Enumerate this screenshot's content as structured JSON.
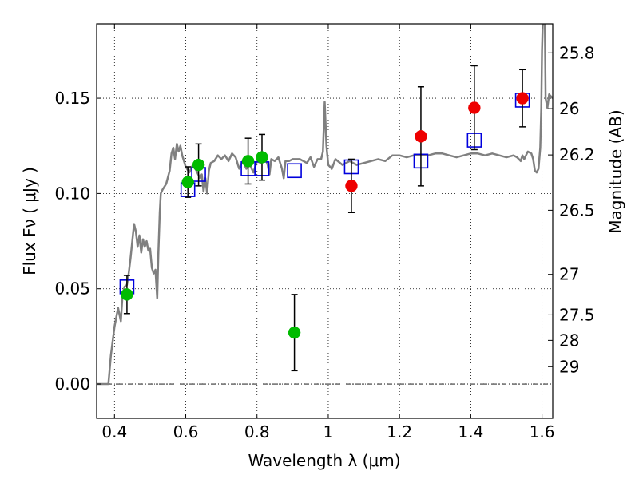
{
  "chart_data": {
    "type": "scatter",
    "title": "",
    "xlabel": "Wavelength  λ (μm)",
    "ylabel": "Flux  Fν  ( μJy )",
    "y2label": "Magnitude (AB)",
    "xlim": [
      0.35,
      1.63
    ],
    "ylim": [
      -0.018,
      0.189
    ],
    "grid": true,
    "x_ticks": [
      0.4,
      0.6,
      0.8,
      1.0,
      1.2,
      1.4,
      1.6
    ],
    "x_tick_labels": [
      "0.4",
      "0.6",
      "0.8",
      "1",
      "1.2",
      "1.4",
      "1.6"
    ],
    "y_ticks": [
      0.0,
      0.05,
      0.1,
      0.15
    ],
    "y_tick_labels": [
      "0.00",
      "0.05",
      "0.10",
      "0.15"
    ],
    "mag_ticks": [
      25.8,
      26,
      26.2,
      26.5,
      27,
      27.5,
      28,
      29
    ],
    "mag_tick_labels": [
      "25.8",
      "26",
      "26.2",
      "26.5",
      "27",
      "27.5",
      "28",
      "29"
    ],
    "colors": {
      "sed_line": "#808080",
      "green_points": "#00bb00",
      "red_points": "#ee0000",
      "model_boxes": "#0000dd",
      "error_bars": "#000000"
    },
    "series": [
      {
        "kind": "observed",
        "color": "green",
        "points": [
          {
            "x": 0.435,
            "y": 0.047,
            "err": 0.01
          },
          {
            "x": 0.606,
            "y": 0.106,
            "err": 0.008
          },
          {
            "x": 0.636,
            "y": 0.115,
            "err": 0.011
          },
          {
            "x": 0.775,
            "y": 0.117,
            "err": 0.012
          },
          {
            "x": 0.814,
            "y": 0.119,
            "err": 0.012
          },
          {
            "x": 0.905,
            "y": 0.027,
            "err": 0.02
          }
        ]
      },
      {
        "kind": "observed",
        "color": "red",
        "points": [
          {
            "x": 1.065,
            "y": 0.104,
            "err": 0.014
          },
          {
            "x": 1.26,
            "y": 0.13,
            "err": 0.026
          },
          {
            "x": 1.41,
            "y": 0.145,
            "err": 0.022
          },
          {
            "x": 1.545,
            "y": 0.15,
            "err": 0.015
          }
        ]
      },
      {
        "kind": "model_band",
        "points": [
          {
            "x": 0.435,
            "y": 0.051
          },
          {
            "x": 0.606,
            "y": 0.102
          },
          {
            "x": 0.636,
            "y": 0.11
          },
          {
            "x": 0.775,
            "y": 0.113
          },
          {
            "x": 0.814,
            "y": 0.113
          },
          {
            "x": 0.905,
            "y": 0.112
          },
          {
            "x": 1.065,
            "y": 0.114
          },
          {
            "x": 1.26,
            "y": 0.117
          },
          {
            "x": 1.41,
            "y": 0.128
          },
          {
            "x": 1.545,
            "y": 0.149
          }
        ]
      },
      {
        "kind": "sed_template",
        "points": [
          [
            0.35,
            0.0
          ],
          [
            0.375,
            0.0
          ],
          [
            0.383,
            0.0
          ],
          [
            0.39,
            0.015
          ],
          [
            0.4,
            0.03
          ],
          [
            0.41,
            0.04
          ],
          [
            0.418,
            0.033
          ],
          [
            0.422,
            0.045
          ],
          [
            0.428,
            0.051
          ],
          [
            0.435,
            0.052
          ],
          [
            0.44,
            0.058
          ],
          [
            0.445,
            0.066
          ],
          [
            0.45,
            0.075
          ],
          [
            0.455,
            0.084
          ],
          [
            0.46,
            0.08
          ],
          [
            0.465,
            0.072
          ],
          [
            0.47,
            0.078
          ],
          [
            0.475,
            0.069
          ],
          [
            0.48,
            0.076
          ],
          [
            0.485,
            0.072
          ],
          [
            0.49,
            0.075
          ],
          [
            0.495,
            0.07
          ],
          [
            0.5,
            0.071
          ],
          [
            0.505,
            0.061
          ],
          [
            0.51,
            0.058
          ],
          [
            0.515,
            0.06
          ],
          [
            0.52,
            0.045
          ],
          [
            0.523,
            0.068
          ],
          [
            0.527,
            0.09
          ],
          [
            0.53,
            0.1
          ],
          [
            0.535,
            0.102
          ],
          [
            0.545,
            0.105
          ],
          [
            0.555,
            0.112
          ],
          [
            0.56,
            0.121
          ],
          [
            0.565,
            0.124
          ],
          [
            0.57,
            0.118
          ],
          [
            0.575,
            0.126
          ],
          [
            0.58,
            0.122
          ],
          [
            0.585,
            0.125
          ],
          [
            0.59,
            0.12
          ],
          [
            0.6,
            0.114
          ],
          [
            0.61,
            0.111
          ],
          [
            0.62,
            0.115
          ],
          [
            0.63,
            0.112
          ],
          [
            0.64,
            0.108
          ],
          [
            0.645,
            0.11
          ],
          [
            0.65,
            0.101
          ],
          [
            0.655,
            0.108
          ],
          [
            0.66,
            0.1
          ],
          [
            0.665,
            0.112
          ],
          [
            0.67,
            0.116
          ],
          [
            0.68,
            0.117
          ],
          [
            0.69,
            0.12
          ],
          [
            0.7,
            0.118
          ],
          [
            0.71,
            0.12
          ],
          [
            0.72,
            0.117
          ],
          [
            0.73,
            0.121
          ],
          [
            0.74,
            0.119
          ],
          [
            0.75,
            0.113
          ],
          [
            0.76,
            0.117
          ],
          [
            0.77,
            0.113
          ],
          [
            0.78,
            0.115
          ],
          [
            0.79,
            0.111
          ],
          [
            0.8,
            0.117
          ],
          [
            0.81,
            0.116
          ],
          [
            0.82,
            0.12
          ],
          [
            0.83,
            0.115
          ],
          [
            0.835,
            0.11
          ],
          [
            0.84,
            0.118
          ],
          [
            0.85,
            0.117
          ],
          [
            0.86,
            0.119
          ],
          [
            0.87,
            0.113
          ],
          [
            0.875,
            0.108
          ],
          [
            0.88,
            0.117
          ],
          [
            0.89,
            0.117
          ],
          [
            0.9,
            0.118
          ],
          [
            0.92,
            0.118
          ],
          [
            0.94,
            0.116
          ],
          [
            0.95,
            0.119
          ],
          [
            0.96,
            0.114
          ],
          [
            0.97,
            0.118
          ],
          [
            0.98,
            0.118
          ],
          [
            0.985,
            0.122
          ],
          [
            0.99,
            0.148
          ],
          [
            0.995,
            0.125
          ],
          [
            1.0,
            0.115
          ],
          [
            1.01,
            0.113
          ],
          [
            1.02,
            0.118
          ],
          [
            1.04,
            0.115
          ],
          [
            1.06,
            0.117
          ],
          [
            1.08,
            0.115
          ],
          [
            1.1,
            0.116
          ],
          [
            1.12,
            0.117
          ],
          [
            1.14,
            0.118
          ],
          [
            1.16,
            0.117
          ],
          [
            1.18,
            0.12
          ],
          [
            1.2,
            0.12
          ],
          [
            1.22,
            0.119
          ],
          [
            1.24,
            0.12
          ],
          [
            1.26,
            0.12
          ],
          [
            1.28,
            0.12
          ],
          [
            1.3,
            0.121
          ],
          [
            1.32,
            0.121
          ],
          [
            1.34,
            0.12
          ],
          [
            1.36,
            0.119
          ],
          [
            1.38,
            0.12
          ],
          [
            1.4,
            0.121
          ],
          [
            1.42,
            0.121
          ],
          [
            1.44,
            0.12
          ],
          [
            1.46,
            0.121
          ],
          [
            1.48,
            0.12
          ],
          [
            1.5,
            0.119
          ],
          [
            1.52,
            0.12
          ],
          [
            1.53,
            0.119
          ],
          [
            1.54,
            0.117
          ],
          [
            1.545,
            0.12
          ],
          [
            1.55,
            0.118
          ],
          [
            1.56,
            0.122
          ],
          [
            1.57,
            0.121
          ],
          [
            1.575,
            0.118
          ],
          [
            1.58,
            0.112
          ],
          [
            1.585,
            0.111
          ],
          [
            1.59,
            0.113
          ],
          [
            1.595,
            0.124
          ],
          [
            1.598,
            0.145
          ],
          [
            1.6,
            0.175
          ],
          [
            1.602,
            0.189
          ],
          [
            1.608,
            0.189
          ],
          [
            1.61,
            0.15
          ],
          [
            1.615,
            0.145
          ],
          [
            1.62,
            0.152
          ],
          [
            1.63,
            0.15
          ]
        ]
      }
    ]
  }
}
